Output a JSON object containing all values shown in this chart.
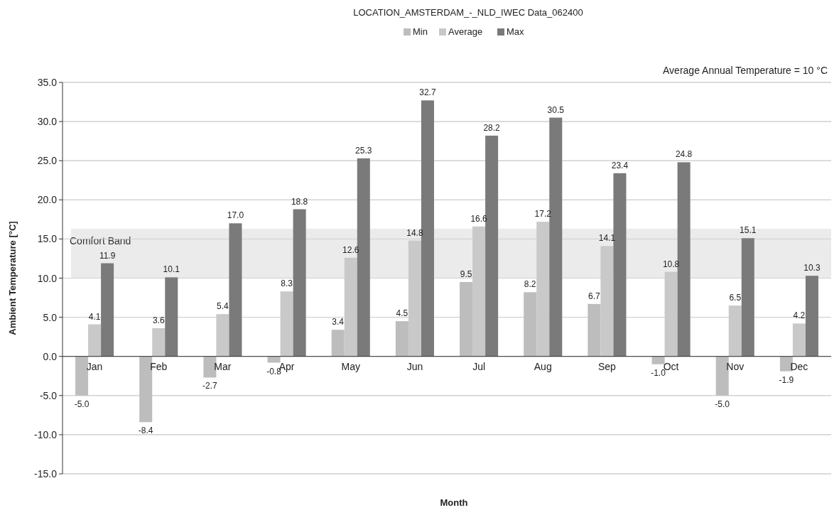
{
  "chart_data": {
    "type": "bar",
    "title": "LOCATION_AMSTERDAM_-_NLD_IWEC Data_062400",
    "categories": [
      "Jan",
      "Feb",
      "Mar",
      "Apr",
      "May",
      "Jun",
      "Jul",
      "Aug",
      "Sep",
      "Oct",
      "Nov",
      "Dec"
    ],
    "series": [
      {
        "name": "Min",
        "color": "#bdbdbd",
        "values": [
          -5.0,
          -8.4,
          -2.7,
          -0.8,
          3.4,
          4.5,
          9.5,
          8.2,
          6.7,
          -1.0,
          -5.0,
          -1.9
        ],
        "value_labels": [
          "-5.0",
          "-8.4",
          "-2.7",
          "-0.8",
          "3.4",
          "4.5",
          "9.5",
          "8.2",
          "6.7",
          "-1.0",
          "-5.0",
          "-1.9"
        ]
      },
      {
        "name": "Average",
        "color": "#c9c9c9",
        "values": [
          4.1,
          3.6,
          5.4,
          8.3,
          12.6,
          14.8,
          16.6,
          17.2,
          14.1,
          10.8,
          6.5,
          4.2
        ],
        "value_labels": [
          "4.1",
          "3.6",
          "5.4",
          "8.3",
          "12.6",
          "14.8",
          "16.6",
          "17.2",
          "14.1",
          "10.8",
          "6.5",
          "4.2"
        ]
      },
      {
        "name": "Max",
        "color": "#7a7a7a",
        "values": [
          11.9,
          10.1,
          17.0,
          18.8,
          25.3,
          32.7,
          28.2,
          30.5,
          23.4,
          24.8,
          15.1,
          10.3
        ],
        "value_labels": [
          "11.9",
          "10.1",
          "17.0",
          "18.8",
          "25.3",
          "32.7",
          "28.2",
          "30.5",
          "23.4",
          "24.8",
          "15.1",
          "10.3"
        ]
      }
    ],
    "ylabel": "Ambient Temperature [°C]",
    "xlabel": "Month",
    "ylim": [
      -15,
      35
    ],
    "yticks": [
      {
        "value": -15,
        "label": "-15.0"
      },
      {
        "value": -10,
        "label": "-10.0"
      },
      {
        "value": -5,
        "label": "-5.0"
      },
      {
        "value": 0,
        "label": "0.0"
      },
      {
        "value": 5,
        "label": "5.0"
      },
      {
        "value": 10,
        "label": "10.0"
      },
      {
        "value": 15,
        "label": "15.0"
      },
      {
        "value": 20,
        "label": "20.0"
      },
      {
        "value": 25,
        "label": "25.0"
      },
      {
        "value": 30,
        "label": "30.0"
      },
      {
        "value": 35,
        "label": "35.0"
      }
    ],
    "bands": [
      {
        "axis": "y",
        "from": 10,
        "to": 16.3,
        "label": "Comfort Band",
        "color": "#ebebeb"
      }
    ],
    "annotations": [
      "Average Annual Temperature = 10 °C"
    ],
    "grid": "y",
    "legend": "top"
  }
}
